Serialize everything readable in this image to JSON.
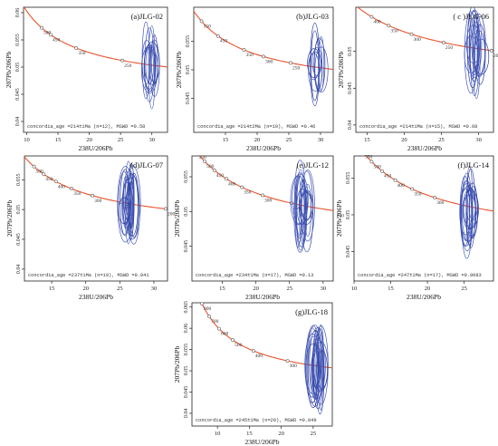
{
  "chart_data": [
    {
      "type": "scatter",
      "id": "a",
      "title": "(a)JLG-02",
      "xlabel": "238U/206Pb",
      "ylabel": "207Pb/206Pb",
      "xlim": [
        9.5,
        32.5
      ],
      "ylim": [
        0.038,
        0.061
      ],
      "x_ticks": [
        10,
        15,
        20,
        25,
        30
      ],
      "y_ticks": [
        0.04,
        0.045,
        0.05,
        0.055,
        0.06
      ],
      "concordia_age_labels": [
        "500",
        "450",
        "350",
        "250"
      ],
      "concordia_ages": [
        500,
        450,
        350,
        250
      ],
      "ellipse_center_x": 29.8,
      "ellipse_center_y": 0.0505,
      "ellipse_count": 12,
      "annotation": "concordia_age =214±1Ma (n=12),  MSWD  =0.58"
    },
    {
      "type": "scatter",
      "id": "b",
      "title": "(b)JLG-03",
      "xlabel": "238U/206Pb",
      "ylabel": "207Pb/206Pb",
      "xlim": [
        10,
        32
      ],
      "ylim": [
        0.039,
        0.061
      ],
      "x_ticks": [
        15,
        20,
        25,
        30
      ],
      "y_ticks": [
        0.045,
        0.05,
        0.055
      ],
      "concordia_age_labels": [
        "550",
        "450",
        "350",
        "300",
        "250"
      ],
      "concordia_ages": [
        550,
        450,
        350,
        300,
        250
      ],
      "ellipse_center_x": 29.6,
      "ellipse_center_y": 0.0505,
      "ellipse_count": 10,
      "annotation": "concordia_age =214±2Ma (n=10),  MSWD  =0.46"
    },
    {
      "type": "scatter",
      "id": "c",
      "title": "( c )JLG-06",
      "xlabel": "238U/206Pb",
      "ylabel": "207Pb/206Pb",
      "xlim": [
        13.5,
        32
      ],
      "ylim": [
        0.039,
        0.056
      ],
      "x_ticks": [
        15,
        20,
        25,
        30
      ],
      "y_ticks": [
        0.04,
        0.045,
        0.05
      ],
      "concordia_age_labels": [
        "400",
        "350",
        "300",
        "250",
        "200"
      ],
      "concordia_ages": [
        400,
        350,
        300,
        250,
        200
      ],
      "ellipse_center_x": 29.6,
      "ellipse_center_y": 0.0502,
      "ellipse_count": 15,
      "annotation": "concordia_age =214±1Ma (n=15), MSWD =0.68"
    },
    {
      "type": "scatter",
      "id": "d",
      "title": "(d)JLG-07",
      "xlabel": "238U/206Pb",
      "ylabel": "207Pb/206Pb",
      "xlim": [
        11,
        32
      ],
      "ylim": [
        0.038,
        0.059
      ],
      "x_ticks": [
        15,
        20,
        25,
        30
      ],
      "y_ticks": [
        0.04,
        0.045,
        0.05,
        0.055
      ],
      "concordia_age_labels": [
        "500",
        "450",
        "400",
        "350",
        "300",
        "250",
        "200"
      ],
      "concordia_ages": [
        500,
        450,
        400,
        350,
        300,
        250,
        200
      ],
      "ellipse_center_x": 26.4,
      "ellipse_center_y": 0.0508,
      "ellipse_count": 19,
      "annotation": "concordia_age =237±1Ma (n=19), MSWD =0.041"
    },
    {
      "type": "scatter",
      "id": "e",
      "title": "(e)JLG-12",
      "xlabel": "238U/206Pb",
      "ylabel": "207Pb/206Pb",
      "xlim": [
        10.5,
        31.5
      ],
      "ylim": [
        0.04,
        0.058
      ],
      "x_ticks": [
        15,
        20,
        25,
        30
      ],
      "y_ticks": [
        0.045,
        0.05,
        0.055
      ],
      "concordia_age_labels": [
        "550",
        "500",
        "450",
        "400",
        "350",
        "300",
        "250",
        "200"
      ],
      "concordia_ages": [
        550,
        500,
        450,
        400,
        350,
        300,
        250,
        200
      ],
      "ellipse_center_x": 27.0,
      "ellipse_center_y": 0.0508,
      "ellipse_count": 17,
      "annotation": "concordia_age =234±1Ma (n=17),  MSWD  =0.13"
    },
    {
      "type": "scatter",
      "id": "f",
      "title": "(f)JLG-14",
      "xlabel": "238U/206Pb",
      "ylabel": "207Pb/206Pb",
      "xlim": [
        10,
        29
      ],
      "ylim": [
        0.041,
        0.058
      ],
      "x_ticks": [
        10,
        15,
        20,
        25
      ],
      "y_ticks": [
        0.045,
        0.05,
        0.055
      ],
      "concordia_age_labels": [
        "550",
        "500",
        "450",
        "400",
        "350",
        "300"
      ],
      "concordia_ages": [
        550,
        500,
        450,
        400,
        350,
        300
      ],
      "ellipse_center_x": 25.8,
      "ellipse_center_y": 0.0505,
      "ellipse_count": 17,
      "annotation": "concordia_age =247±1Ma (n=17),  MSWD  =0.0083"
    },
    {
      "type": "scatter",
      "id": "g",
      "title": "(g)JLG-18",
      "xlabel": "238U/206Pb",
      "ylabel": "207Pb/206Pb",
      "xlim": [
        6,
        28
      ],
      "ylim": [
        0.037,
        0.066
      ],
      "x_ticks": [
        10,
        15,
        20,
        25
      ],
      "y_ticks": [
        0.04,
        0.045,
        0.05,
        0.055,
        0.06,
        0.065
      ],
      "concordia_age_labels": [
        "800",
        "700",
        "600",
        "500",
        "400",
        "300"
      ],
      "concordia_ages": [
        800,
        700,
        600,
        500,
        400,
        300
      ],
      "ellipse_center_x": 25.6,
      "ellipse_center_y": 0.0505,
      "ellipse_count": 20,
      "annotation": "concordia_age =245±1Ma (n=20),  MSWD  =0.049"
    }
  ]
}
